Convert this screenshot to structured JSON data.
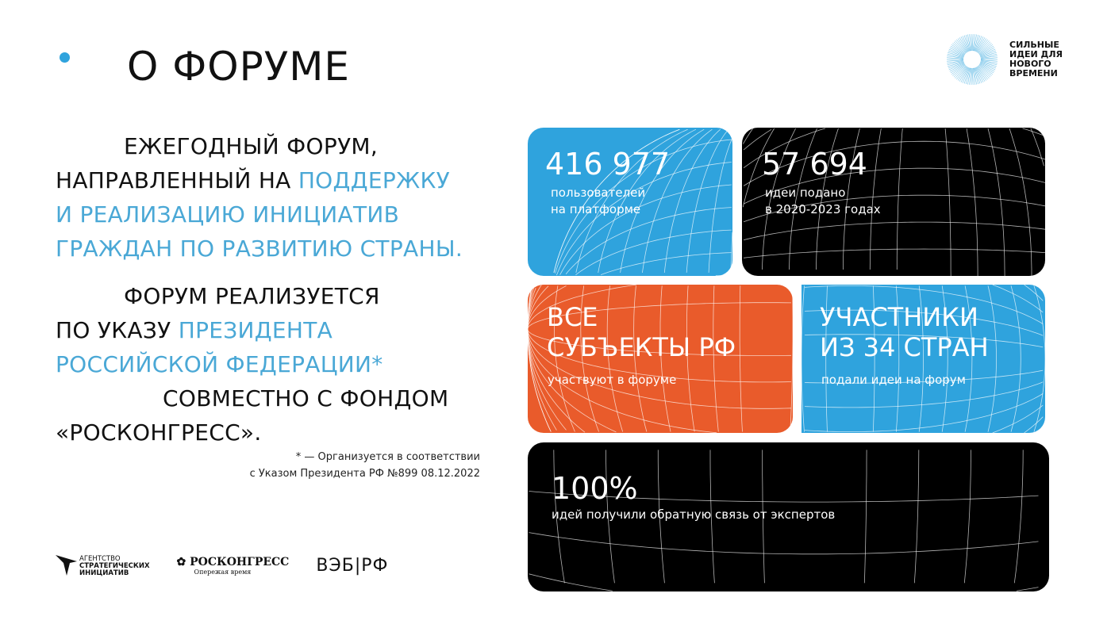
{
  "title": "О ФОРУМЕ",
  "brand": {
    "logo_text": "СИЛЬНЫЕ ИДЕИ ДЛЯ НОВОГО ВРЕМЕНИ",
    "accent": "#2fa3dd"
  },
  "para1": {
    "l1": "ЕЖЕГОДНЫЙ ФОРУМ,",
    "l2a": "НАПРАВЛЕННЫЙ НА ",
    "l2b": "ПОДДЕРЖКУ",
    "l3": "И РЕАЛИЗАЦИЮ ИНИЦИАТИВ",
    "l4": "ГРАЖДАН ПО РАЗВИТИЮ СТРАНЫ."
  },
  "para2": {
    "l1": "ФОРУМ РЕАЛИЗУЕТСЯ",
    "l2a": "ПО УКАЗУ ",
    "l2b": "ПРЕЗИДЕНТА",
    "l3": "РОССИЙСКОЙ ФЕДЕРАЦИИ*",
    "l4": "СОВМЕСТНО С ФОНДОМ",
    "l5": "«РОСКОНГРЕСС»."
  },
  "footnote": {
    "l1": "* — Организуется в соответствии",
    "l2": "с Указом Президента РФ №899 08.12.2022"
  },
  "cards": [
    {
      "big": "416 977",
      "small1": "пользователей",
      "small2": "на платформе",
      "color": "#2fa3dd"
    },
    {
      "big": "57 694",
      "small1": "идеи подано",
      "small2": "в 2020-2023 годах",
      "color": "#000000"
    },
    {
      "big1": "ВСЕ",
      "big2": "СУБЪЕКТЫ РФ",
      "small1": "участвуют в форуме",
      "color": "#e95b2b"
    },
    {
      "big1": "УЧАСТНИКИ",
      "big2": "ИЗ 34 СТРАН",
      "small1": "подали идеи на форум",
      "color": "#2fa3dd"
    },
    {
      "big": "100%",
      "small1": "идей получили обратную связь от экспертов",
      "color": "#000000"
    }
  ],
  "partners": {
    "asi": [
      "АГЕНТСТВО",
      "СТРАТЕГИЧЕСКИХ",
      "ИНИЦИАТИВ"
    ],
    "roscongress": "РОСКОНГРЕСС",
    "roscongress_tagline": "Опережая время",
    "veb": "ВЭБ|РФ"
  }
}
